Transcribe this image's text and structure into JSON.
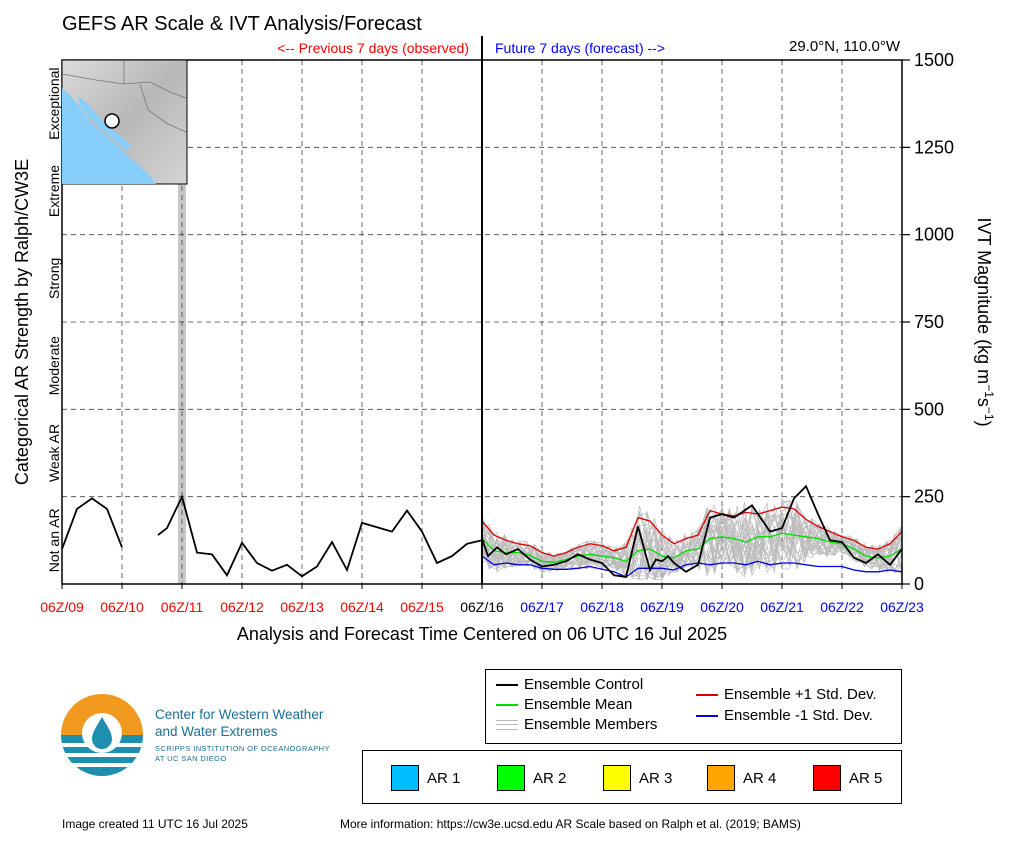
{
  "title": "GEFS AR Scale & IVT Analysis/Forecast",
  "location": "29.0°N, 110.0°W",
  "previous_label": "<-- Previous 7 days (observed)",
  "future_label": "Future 7 days (forecast) -->",
  "colors": {
    "observed": "#ff0000",
    "forecast": "#0000ff",
    "control": "#000000",
    "mean": "#00dd00",
    "plus_std": "#dd0000",
    "minus_std": "#0000dd",
    "members": "#bbbbbb",
    "highlight": "#c8c8c8"
  },
  "chart_data": {
    "type": "line",
    "title": "GEFS AR Scale & IVT Analysis/Forecast",
    "xlabel": "Analysis and Forecast Time Centered on 06 UTC 16 Jul 2025",
    "ylabel_right": "IVT Magnitude (kg m⁻¹s⁻¹)",
    "ylabel_left": "Categorical AR Strength by Ralph/CW3E",
    "ylim": [
      0,
      1500
    ],
    "y_ticks": [
      "0",
      "250",
      "500",
      "750",
      "1000",
      "1250",
      "1500"
    ],
    "x_tick_labels": [
      "06Z/09",
      "06Z/10",
      "06Z/11",
      "06Z/12",
      "06Z/13",
      "06Z/14",
      "06Z/15",
      "06Z/16",
      "06Z/17",
      "06Z/18",
      "06Z/19",
      "06Z/20",
      "06Z/21",
      "06Z/22",
      "06Z/23"
    ],
    "x_tick_colors": [
      "observed",
      "observed",
      "observed",
      "observed",
      "observed",
      "observed",
      "observed",
      "control",
      "forecast",
      "forecast",
      "forecast",
      "forecast",
      "forecast",
      "forecast",
      "forecast"
    ],
    "categories_left": [
      "Not an AR",
      "Weak AR",
      "Moderate",
      "Strong",
      "Extreme",
      "Exceptional"
    ],
    "grid": true,
    "highlight_day": 2,
    "observed": {
      "days": [
        0,
        0.25,
        0.5,
        0.75,
        1.0,
        1.6,
        1.75,
        2.0,
        2.25,
        2.5,
        2.75,
        3.0,
        3.25,
        3.5,
        3.75,
        4.0,
        4.25,
        4.5,
        4.75,
        5.0,
        5.5,
        5.75,
        6.0,
        6.25,
        6.5,
        6.75,
        7.0
      ],
      "values": [
        100,
        215,
        245,
        215,
        105,
        140,
        160,
        250,
        90,
        85,
        25,
        118,
        60,
        38,
        55,
        22,
        50,
        120,
        40,
        175,
        150,
        210,
        150,
        60,
        80,
        115,
        125
      ]
    },
    "series": [
      {
        "name": "Ensemble Control",
        "days": [
          7.0,
          7.1,
          7.25,
          7.4,
          7.6,
          7.8,
          8.0,
          8.2,
          8.4,
          8.6,
          8.8,
          9.0,
          9.2,
          9.4,
          9.6,
          9.8,
          9.9,
          10.0,
          10.1,
          10.2,
          10.4,
          10.6,
          10.8,
          11.0,
          11.2,
          11.5,
          11.8,
          12.0,
          12.2,
          12.4,
          12.6,
          12.8,
          13.0,
          13.2,
          13.4,
          13.6,
          13.8,
          14.0
        ],
        "values": [
          130,
          80,
          105,
          85,
          100,
          70,
          50,
          55,
          65,
          85,
          70,
          60,
          25,
          20,
          165,
          40,
          70,
          65,
          80,
          60,
          35,
          55,
          190,
          200,
          190,
          225,
          150,
          160,
          245,
          280,
          200,
          125,
          120,
          75,
          60,
          85,
          55,
          100
        ]
      },
      {
        "name": "Ensemble Mean",
        "days": [
          7.0,
          7.2,
          7.4,
          7.6,
          7.8,
          8.0,
          8.2,
          8.4,
          8.6,
          8.8,
          9.0,
          9.2,
          9.4,
          9.6,
          9.8,
          10.0,
          10.2,
          10.4,
          10.6,
          10.8,
          11.0,
          11.2,
          11.4,
          11.6,
          11.8,
          12.0,
          12.2,
          12.4,
          12.6,
          12.8,
          13.0,
          13.2,
          13.4,
          13.6,
          13.8,
          14.0
        ],
        "values": [
          130,
          95,
          90,
          90,
          82,
          65,
          62,
          70,
          80,
          85,
          80,
          75,
          65,
          95,
          100,
          80,
          75,
          95,
          100,
          130,
          135,
          130,
          120,
          135,
          135,
          145,
          140,
          135,
          130,
          120,
          115,
          100,
          80,
          75,
          80,
          100
        ]
      },
      {
        "name": "Ensemble +1 Std. Dev.",
        "days": [
          7.0,
          7.2,
          7.4,
          7.6,
          7.8,
          8.0,
          8.2,
          8.4,
          8.6,
          8.8,
          9.0,
          9.2,
          9.4,
          9.6,
          9.8,
          10.0,
          10.2,
          10.4,
          10.6,
          10.8,
          11.0,
          11.2,
          11.4,
          11.6,
          11.8,
          12.0,
          12.2,
          12.4,
          12.6,
          12.8,
          13.0,
          13.2,
          13.4,
          13.6,
          13.8,
          14.0
        ],
        "values": [
          180,
          140,
          125,
          115,
          110,
          90,
          80,
          90,
          105,
          115,
          110,
          95,
          105,
          190,
          180,
          140,
          115,
          130,
          140,
          210,
          200,
          195,
          205,
          200,
          210,
          220,
          215,
          185,
          165,
          150,
          135,
          125,
          105,
          100,
          115,
          150
        ]
      },
      {
        "name": "Ensemble -1 Std. Dev.",
        "days": [
          7.0,
          7.2,
          7.4,
          7.6,
          7.8,
          8.0,
          8.2,
          8.4,
          8.6,
          8.8,
          9.0,
          9.2,
          9.4,
          9.6,
          9.8,
          10.0,
          10.2,
          10.4,
          10.6,
          10.8,
          11.0,
          11.2,
          11.4,
          11.6,
          11.8,
          12.0,
          12.2,
          12.4,
          12.6,
          12.8,
          13.0,
          13.2,
          13.4,
          13.6,
          13.8,
          14.0
        ],
        "values": [
          80,
          55,
          60,
          55,
          55,
          45,
          42,
          42,
          45,
          50,
          42,
          35,
          20,
          45,
          45,
          45,
          40,
          55,
          60,
          55,
          60,
          60,
          55,
          65,
          55,
          60,
          60,
          55,
          50,
          50,
          50,
          40,
          35,
          35,
          40,
          35
        ]
      }
    ],
    "members_note_name": "Ensemble Members"
  },
  "legend": {
    "control": "Ensemble Control",
    "mean": "Ensemble Mean",
    "members": "Ensemble Members",
    "plus_std": "Ensemble +1 Std. Dev.",
    "minus_std": "Ensemble -1 Std. Dev."
  },
  "ar_categories": [
    {
      "label": "AR 1",
      "color": "#00bfff"
    },
    {
      "label": "AR 2",
      "color": "#00ff00"
    },
    {
      "label": "AR 3",
      "color": "#ffff00"
    },
    {
      "label": "AR 4",
      "color": "#ffa500"
    },
    {
      "label": "AR 5",
      "color": "#ff0000"
    }
  ],
  "logo": {
    "line1": "Center for Western Weather",
    "line2": "and Water Extremes",
    "line3": "SCRIPPS INSTITUTION OF OCEANOGRAPHY",
    "line4": "AT UC SAN DIEGO"
  },
  "footer": {
    "created": "Image created 11 UTC 16 Jul 2025",
    "more_info": "More information: https://cw3e.ucsd.edu AR Scale based on Ralph et al. (2019; BAMS)"
  }
}
